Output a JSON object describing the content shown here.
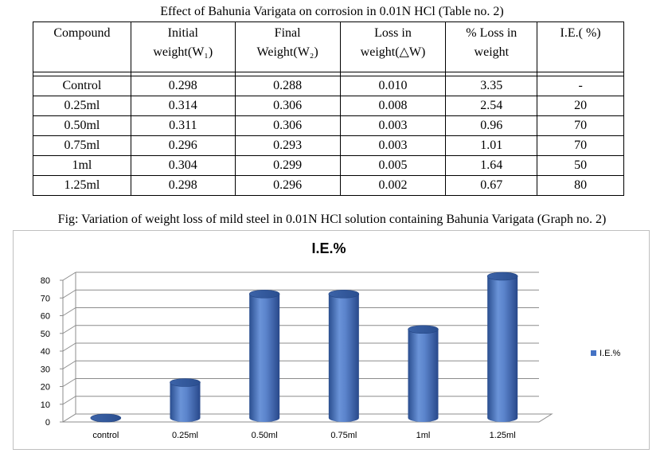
{
  "table": {
    "caption": "Effect of Bahunia Varigata on corrosion in 0.01N HCl (Table no. 2)",
    "headers": [
      [
        "Compound",
        ""
      ],
      [
        "Initial",
        "weight(W₁)"
      ],
      [
        "Final",
        "Weight(W₂)"
      ],
      [
        "Loss in",
        "weight(△W)"
      ],
      [
        "% Loss in",
        "weight"
      ],
      [
        "I.E.( %)",
        ""
      ]
    ],
    "rows": [
      [
        "Control",
        "0.298",
        "0.288",
        "0.010",
        "3.35",
        "-"
      ],
      [
        "0.25ml",
        "0.314",
        "0.306",
        "0.008",
        "2.54",
        "20"
      ],
      [
        "0.50ml",
        "0.311",
        "0.306",
        "0.003",
        "0.96",
        "70"
      ],
      [
        "0.75ml",
        "0.296",
        "0.293",
        "0.003",
        "1.01",
        "70"
      ],
      [
        "1ml",
        "0.304",
        "0.299",
        "0.005",
        "1.64",
        "50"
      ],
      [
        "1.25ml",
        "0.298",
        "0.296",
        "0.002",
        "0.67",
        "80"
      ]
    ]
  },
  "figure_caption": "Fig: Variation of weight loss of mild steel in 0.01N HCl solution containing Bahunia Varigata (Graph no. 2)",
  "chart_data": {
    "type": "bar",
    "title": "I.E.%",
    "categories": [
      "control",
      "0.25ml",
      "0.50ml",
      "0.75ml",
      "1ml",
      "1.25ml"
    ],
    "series": [
      {
        "name": "I.E.%",
        "values": [
          0,
          20,
          70,
          70,
          50,
          80
        ],
        "color": "#4472c4"
      }
    ],
    "yticks": [
      "0",
      "10",
      "20",
      "30",
      "40",
      "50",
      "60",
      "70",
      "80"
    ],
    "ylim": [
      0,
      80
    ],
    "grid": true,
    "legend_position": "right",
    "style": "3d-cylinder"
  }
}
